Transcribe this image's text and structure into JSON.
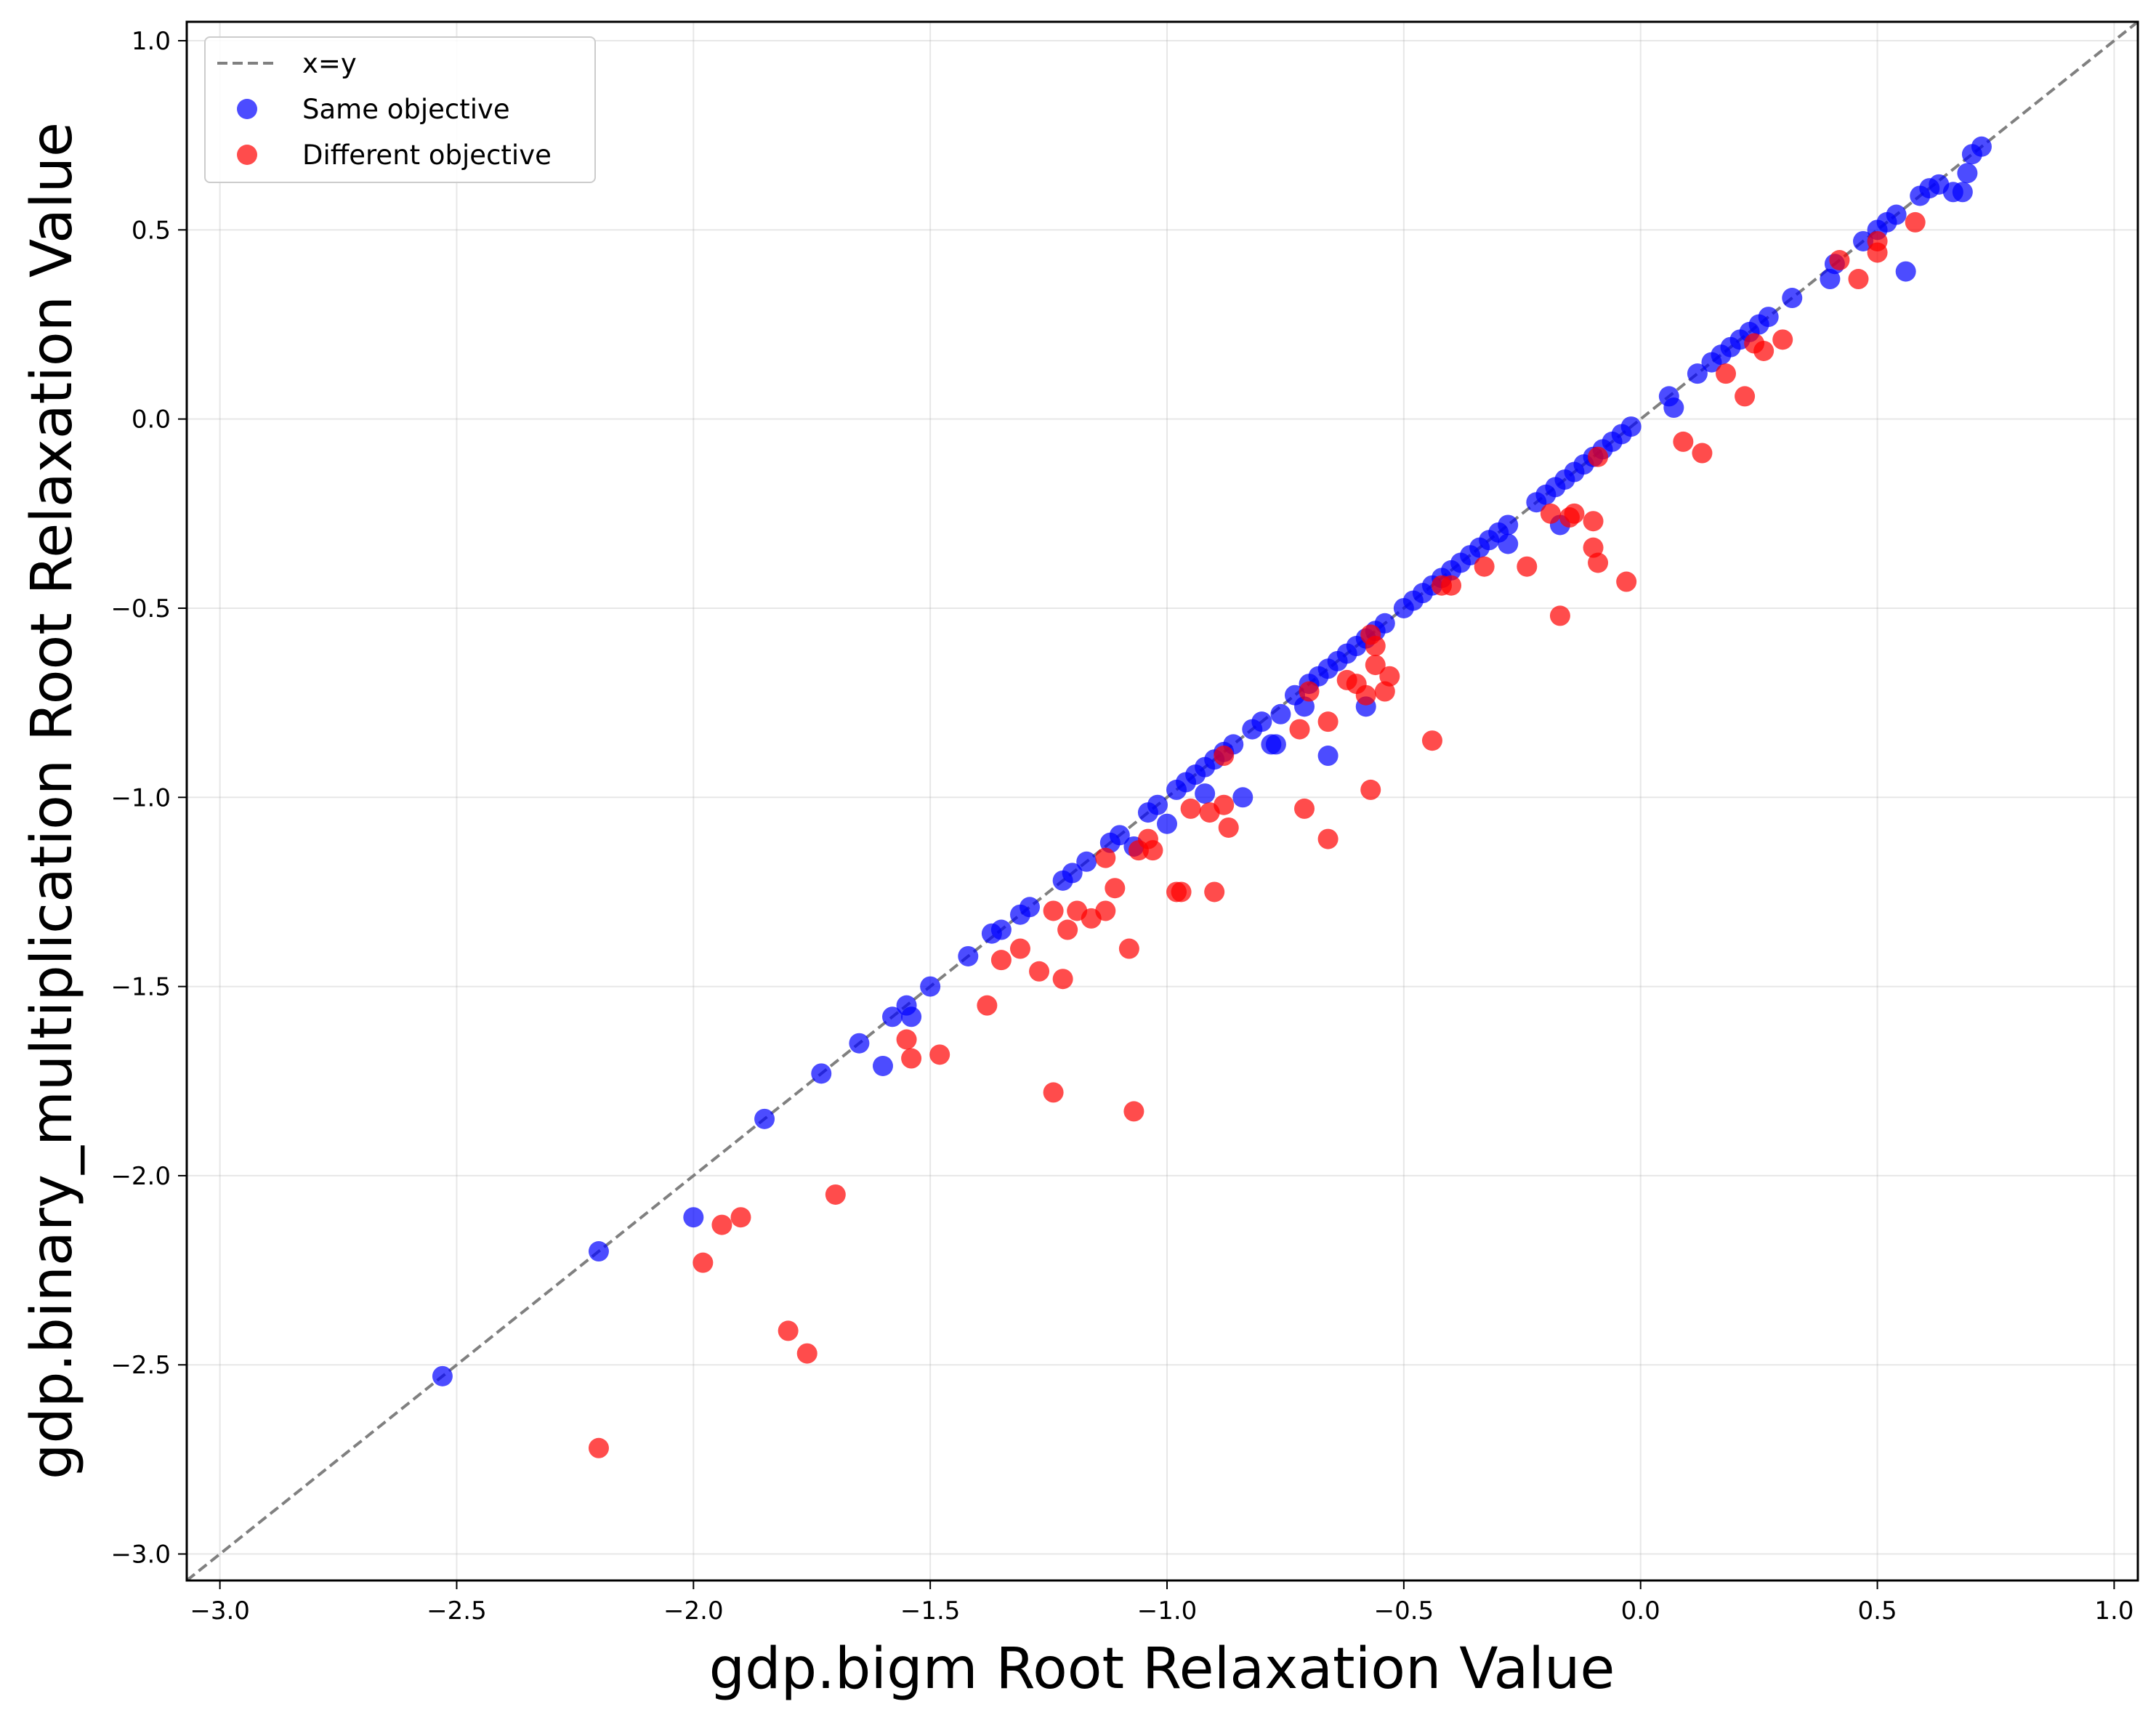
{
  "chart_data": {
    "type": "scatter",
    "xlabel": "gdp.bigm Root Relaxation Value",
    "ylabel": "gdp.binary_multiplication Root Relaxation Value",
    "xlim": [
      -3.07,
      1.05
    ],
    "ylim": [
      -3.07,
      1.05
    ],
    "xticks": [
      -3.0,
      -2.5,
      -2.0,
      -1.5,
      -1.0,
      -0.5,
      0.0,
      0.5,
      1.0
    ],
    "yticks": [
      -3.0,
      -2.5,
      -2.0,
      -1.5,
      -1.0,
      -0.5,
      0.0,
      0.5,
      1.0
    ],
    "xtick_labels": [
      "−3.0",
      "−2.5",
      "−2.0",
      "−1.5",
      "−1.0",
      "−0.5",
      "0.0",
      "0.5",
      "1.0"
    ],
    "ytick_labels": [
      "−3.0",
      "−2.5",
      "−2.0",
      "−1.5",
      "−1.0",
      "−0.5",
      "0.0",
      "0.5",
      "1.0"
    ],
    "grid": true,
    "legend_position": "top-left",
    "reference_line": {
      "name": "x=y",
      "color": "#808080",
      "style": "dashed"
    },
    "series": [
      {
        "name": "Same objective",
        "color": "#0000ff",
        "points": [
          [
            -2.53,
            -2.53
          ],
          [
            -2.2,
            -2.2
          ],
          [
            -2.0,
            -2.11
          ],
          [
            -1.85,
            -1.85
          ],
          [
            -1.73,
            -1.73
          ],
          [
            -1.65,
            -1.65
          ],
          [
            -1.6,
            -1.71
          ],
          [
            -1.58,
            -1.58
          ],
          [
            -1.55,
            -1.55
          ],
          [
            -1.54,
            -1.58
          ],
          [
            -1.5,
            -1.5
          ],
          [
            -1.42,
            -1.42
          ],
          [
            -1.37,
            -1.36
          ],
          [
            -1.35,
            -1.35
          ],
          [
            -1.31,
            -1.31
          ],
          [
            -1.29,
            -1.29
          ],
          [
            -1.22,
            -1.22
          ],
          [
            -1.2,
            -1.2
          ],
          [
            -1.17,
            -1.17
          ],
          [
            -1.12,
            -1.12
          ],
          [
            -1.1,
            -1.1
          ],
          [
            -1.07,
            -1.13
          ],
          [
            -1.04,
            -1.04
          ],
          [
            -1.02,
            -1.02
          ],
          [
            -1.0,
            -1.07
          ],
          [
            -0.98,
            -0.98
          ],
          [
            -0.96,
            -0.96
          ],
          [
            -0.94,
            -0.94
          ],
          [
            -0.92,
            -0.99
          ],
          [
            -0.92,
            -0.92
          ],
          [
            -0.9,
            -0.9
          ],
          [
            -0.88,
            -0.88
          ],
          [
            -0.86,
            -0.86
          ],
          [
            -0.84,
            -1.0
          ],
          [
            -0.82,
            -0.82
          ],
          [
            -0.8,
            -0.8
          ],
          [
            -0.78,
            -0.86
          ],
          [
            -0.77,
            -0.86
          ],
          [
            -0.76,
            -0.78
          ],
          [
            -0.73,
            -0.73
          ],
          [
            -0.71,
            -0.76
          ],
          [
            -0.7,
            -0.7
          ],
          [
            -0.68,
            -0.68
          ],
          [
            -0.66,
            -0.89
          ],
          [
            -0.66,
            -0.66
          ],
          [
            -0.64,
            -0.64
          ],
          [
            -0.62,
            -0.62
          ],
          [
            -0.6,
            -0.6
          ],
          [
            -0.58,
            -0.76
          ],
          [
            -0.58,
            -0.58
          ],
          [
            -0.56,
            -0.56
          ],
          [
            -0.54,
            -0.54
          ],
          [
            -0.5,
            -0.5
          ],
          [
            -0.48,
            -0.48
          ],
          [
            -0.46,
            -0.46
          ],
          [
            -0.44,
            -0.44
          ],
          [
            -0.42,
            -0.42
          ],
          [
            -0.4,
            -0.4
          ],
          [
            -0.38,
            -0.38
          ],
          [
            -0.36,
            -0.36
          ],
          [
            -0.34,
            -0.34
          ],
          [
            -0.32,
            -0.32
          ],
          [
            -0.3,
            -0.3
          ],
          [
            -0.28,
            -0.33
          ],
          [
            -0.28,
            -0.28
          ],
          [
            -0.22,
            -0.22
          ],
          [
            -0.2,
            -0.2
          ],
          [
            -0.18,
            -0.18
          ],
          [
            -0.17,
            -0.28
          ],
          [
            -0.16,
            -0.16
          ],
          [
            -0.14,
            -0.14
          ],
          [
            -0.12,
            -0.12
          ],
          [
            -0.1,
            -0.1
          ],
          [
            -0.08,
            -0.08
          ],
          [
            -0.06,
            -0.06
          ],
          [
            -0.04,
            -0.04
          ],
          [
            -0.02,
            -0.02
          ],
          [
            0.06,
            0.06
          ],
          [
            0.07,
            0.03
          ],
          [
            0.12,
            0.12
          ],
          [
            0.15,
            0.15
          ],
          [
            0.17,
            0.17
          ],
          [
            0.19,
            0.19
          ],
          [
            0.21,
            0.21
          ],
          [
            0.23,
            0.23
          ],
          [
            0.25,
            0.25
          ],
          [
            0.27,
            0.27
          ],
          [
            0.32,
            0.32
          ],
          [
            0.4,
            0.37
          ],
          [
            0.41,
            0.41
          ],
          [
            0.47,
            0.47
          ],
          [
            0.5,
            0.5
          ],
          [
            0.52,
            0.52
          ],
          [
            0.54,
            0.54
          ],
          [
            0.56,
            0.39
          ],
          [
            0.59,
            0.59
          ],
          [
            0.61,
            0.61
          ],
          [
            0.63,
            0.62
          ],
          [
            0.66,
            0.6
          ],
          [
            0.68,
            0.6
          ],
          [
            0.69,
            0.65
          ],
          [
            0.7,
            0.7
          ],
          [
            0.72,
            0.72
          ]
        ]
      },
      {
        "name": "Different objective",
        "color": "#ff0000",
        "points": [
          [
            -2.2,
            -2.72
          ],
          [
            -1.98,
            -2.23
          ],
          [
            -1.94,
            -2.13
          ],
          [
            -1.9,
            -2.11
          ],
          [
            -1.8,
            -2.41
          ],
          [
            -1.76,
            -2.47
          ],
          [
            -1.7,
            -2.05
          ],
          [
            -1.55,
            -1.64
          ],
          [
            -1.54,
            -1.69
          ],
          [
            -1.48,
            -1.68
          ],
          [
            -1.38,
            -1.55
          ],
          [
            -1.35,
            -1.43
          ],
          [
            -1.31,
            -1.4
          ],
          [
            -1.27,
            -1.46
          ],
          [
            -1.24,
            -1.3
          ],
          [
            -1.24,
            -1.78
          ],
          [
            -1.22,
            -1.48
          ],
          [
            -1.21,
            -1.35
          ],
          [
            -1.19,
            -1.3
          ],
          [
            -1.16,
            -1.32
          ],
          [
            -1.13,
            -1.3
          ],
          [
            -1.13,
            -1.16
          ],
          [
            -1.11,
            -1.24
          ],
          [
            -1.08,
            -1.4
          ],
          [
            -1.07,
            -1.83
          ],
          [
            -1.06,
            -1.14
          ],
          [
            -1.04,
            -1.11
          ],
          [
            -1.03,
            -1.14
          ],
          [
            -0.98,
            -1.25
          ],
          [
            -0.97,
            -1.25
          ],
          [
            -0.95,
            -1.03
          ],
          [
            -0.91,
            -1.04
          ],
          [
            -0.9,
            -1.25
          ],
          [
            -0.88,
            -1.02
          ],
          [
            -0.87,
            -1.08
          ],
          [
            -0.88,
            -0.89
          ],
          [
            -0.72,
            -0.82
          ],
          [
            -0.71,
            -1.03
          ],
          [
            -0.7,
            -0.72
          ],
          [
            -0.66,
            -1.11
          ],
          [
            -0.66,
            -0.8
          ],
          [
            -0.62,
            -0.69
          ],
          [
            -0.6,
            -0.7
          ],
          [
            -0.58,
            -0.73
          ],
          [
            -0.57,
            -0.98
          ],
          [
            -0.56,
            -0.65
          ],
          [
            -0.54,
            -0.72
          ],
          [
            -0.53,
            -0.68
          ],
          [
            -0.56,
            -0.6
          ],
          [
            -0.57,
            -0.57
          ],
          [
            -0.44,
            -0.85
          ],
          [
            -0.42,
            -0.44
          ],
          [
            -0.4,
            -0.44
          ],
          [
            -0.33,
            -0.39
          ],
          [
            -0.24,
            -0.39
          ],
          [
            -0.19,
            -0.25
          ],
          [
            -0.17,
            -0.52
          ],
          [
            -0.15,
            -0.26
          ],
          [
            -0.14,
            -0.25
          ],
          [
            -0.1,
            -0.27
          ],
          [
            -0.1,
            -0.34
          ],
          [
            -0.09,
            -0.38
          ],
          [
            -0.09,
            -0.1
          ],
          [
            -0.03,
            -0.43
          ],
          [
            0.09,
            -0.06
          ],
          [
            0.13,
            -0.09
          ],
          [
            0.18,
            0.12
          ],
          [
            0.22,
            0.06
          ],
          [
            0.24,
            0.2
          ],
          [
            0.26,
            0.18
          ],
          [
            0.3,
            0.21
          ],
          [
            0.42,
            0.42
          ],
          [
            0.46,
            0.37
          ],
          [
            0.5,
            0.44
          ],
          [
            0.5,
            0.47
          ],
          [
            0.58,
            0.52
          ]
        ]
      }
    ]
  },
  "legend": {
    "items": [
      {
        "label": "x=y",
        "kind": "line",
        "color": "#808080"
      },
      {
        "label": "Same objective",
        "kind": "marker",
        "color": "#0000ff"
      },
      {
        "label": "Different objective",
        "kind": "marker",
        "color": "#ff0000"
      }
    ]
  }
}
